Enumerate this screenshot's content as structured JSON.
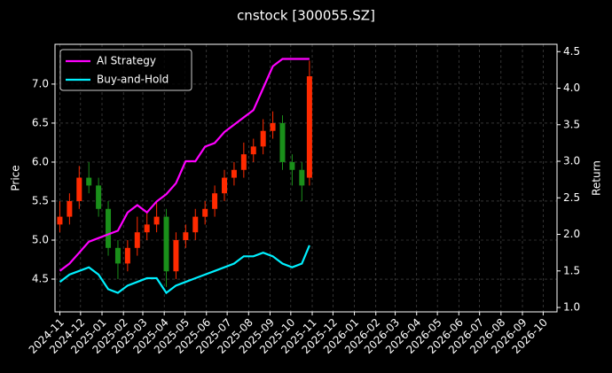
{
  "chart_data": {
    "type": "candlestick",
    "title": "cnstock [300055.SZ]",
    "ylabel": "Price",
    "y2label": "Return",
    "x": [
      "2024-11-01",
      "2024-11-15",
      "2024-11-29",
      "2024-12-13",
      "2024-12-27",
      "2025-01-10",
      "2025-01-24",
      "2025-02-07",
      "2025-02-21",
      "2025-03-07",
      "2025-03-21",
      "2025-04-04",
      "2025-04-18",
      "2025-05-02",
      "2025-05-16",
      "2025-05-30",
      "2025-06-13",
      "2025-06-27",
      "2025-07-11",
      "2025-07-25",
      "2025-08-08",
      "2025-08-22",
      "2025-09-05",
      "2025-09-19",
      "2025-10-03",
      "2025-10-17",
      "2025-10-28"
    ],
    "candles": {
      "open": [
        5.2,
        5.3,
        5.5,
        5.8,
        5.7,
        5.4,
        4.9,
        4.7,
        4.9,
        5.1,
        5.2,
        5.3,
        4.6,
        5.0,
        5.1,
        5.3,
        5.4,
        5.6,
        5.8,
        5.9,
        6.1,
        6.2,
        6.4,
        6.5,
        6.0,
        5.9,
        5.8
      ],
      "high": [
        5.5,
        5.6,
        5.95,
        6.0,
        5.8,
        5.5,
        5.0,
        5.0,
        5.3,
        5.35,
        5.5,
        5.4,
        5.1,
        5.2,
        5.4,
        5.5,
        5.7,
        5.9,
        6.0,
        6.25,
        6.3,
        6.55,
        6.65,
        6.6,
        6.1,
        6.0,
        7.3
      ],
      "low": [
        5.1,
        5.2,
        5.4,
        5.6,
        5.3,
        4.8,
        4.5,
        4.6,
        4.8,
        5.0,
        5.1,
        4.4,
        4.5,
        4.9,
        5.0,
        5.2,
        5.3,
        5.5,
        5.7,
        5.8,
        6.0,
        6.1,
        6.3,
        5.9,
        5.7,
        5.5,
        5.7
      ],
      "close": [
        5.3,
        5.5,
        5.8,
        5.7,
        5.4,
        4.9,
        4.7,
        4.9,
        5.1,
        5.2,
        5.3,
        4.6,
        5.0,
        5.1,
        5.3,
        5.4,
        5.6,
        5.8,
        5.9,
        6.1,
        6.2,
        6.4,
        6.5,
        6.0,
        5.9,
        5.7,
        7.1
      ],
      "up_color": "#ff2a00",
      "down_color": "#1a8f1a"
    },
    "series": [
      {
        "name": "AI Strategy",
        "color": "#ff00ff",
        "axis": "y2",
        "values": [
          1.5,
          1.6,
          1.75,
          1.9,
          1.95,
          2.0,
          2.05,
          2.3,
          2.4,
          2.3,
          2.45,
          2.55,
          2.7,
          3.0,
          3.0,
          3.2,
          3.25,
          3.4,
          3.5,
          3.6,
          3.7,
          4.0,
          4.3,
          4.4,
          4.4,
          4.4,
          4.4
        ]
      },
      {
        "name": "Buy-and-Hold",
        "color": "#00f0ff",
        "axis": "y2",
        "values": [
          1.35,
          1.45,
          1.5,
          1.55,
          1.45,
          1.25,
          1.2,
          1.3,
          1.35,
          1.4,
          1.4,
          1.2,
          1.3,
          1.35,
          1.4,
          1.45,
          1.5,
          1.55,
          1.6,
          1.7,
          1.7,
          1.75,
          1.7,
          1.6,
          1.55,
          1.6,
          1.85
        ]
      }
    ],
    "xlim": [
      "2024-10-25",
      "2026-10-21"
    ],
    "xticks": [
      {
        "value": "2024-11-01",
        "label": "2024-11"
      },
      {
        "value": "2024-12-01",
        "label": "2024-12"
      },
      {
        "value": "2025-01-01",
        "label": "2025-01"
      },
      {
        "value": "2025-02-01",
        "label": "2025-02"
      },
      {
        "value": "2025-03-01",
        "label": "2025-03"
      },
      {
        "value": "2025-04-01",
        "label": "2025-04"
      },
      {
        "value": "2025-05-01",
        "label": "2025-05"
      },
      {
        "value": "2025-06-01",
        "label": "2025-06"
      },
      {
        "value": "2025-07-01",
        "label": "2025-07"
      },
      {
        "value": "2025-08-01",
        "label": "2025-08"
      },
      {
        "value": "2025-09-01",
        "label": "2025-09"
      },
      {
        "value": "2025-10-01",
        "label": "2025-10"
      },
      {
        "value": "2025-11-01",
        "label": "2025-11"
      },
      {
        "value": "2025-12-01",
        "label": "2025-12"
      },
      {
        "value": "2026-01-01",
        "label": "2026-01"
      },
      {
        "value": "2026-02-01",
        "label": "2026-02"
      },
      {
        "value": "2026-03-01",
        "label": "2026-03"
      },
      {
        "value": "2026-04-01",
        "label": "2026-04"
      },
      {
        "value": "2026-05-01",
        "label": "2026-05"
      },
      {
        "value": "2026-06-01",
        "label": "2026-06"
      },
      {
        "value": "2026-07-01",
        "label": "2026-07"
      },
      {
        "value": "2026-08-01",
        "label": "2026-08"
      },
      {
        "value": "2026-09-01",
        "label": "2026-09"
      },
      {
        "value": "2026-10-01",
        "label": "2026-10"
      }
    ],
    "ylim": [
      4.08,
      7.51
    ],
    "yticks": [
      4.5,
      {
        "value": 5,
        "label": "5.0"
      },
      5.5,
      {
        "value": 6,
        "label": "6.0"
      },
      6.5,
      {
        "value": 7,
        "label": "7.0"
      }
    ],
    "y2lim": [
      0.94,
      4.6
    ],
    "y2ticks": [
      {
        "value": 1,
        "label": "1.0"
      },
      1.5,
      {
        "value": 2,
        "label": "2.0"
      },
      2.5,
      {
        "value": 3,
        "label": "3.0"
      },
      3.5,
      {
        "value": 4,
        "label": "4.0"
      },
      4.5
    ],
    "grid": true,
    "legend": "upper left"
  }
}
